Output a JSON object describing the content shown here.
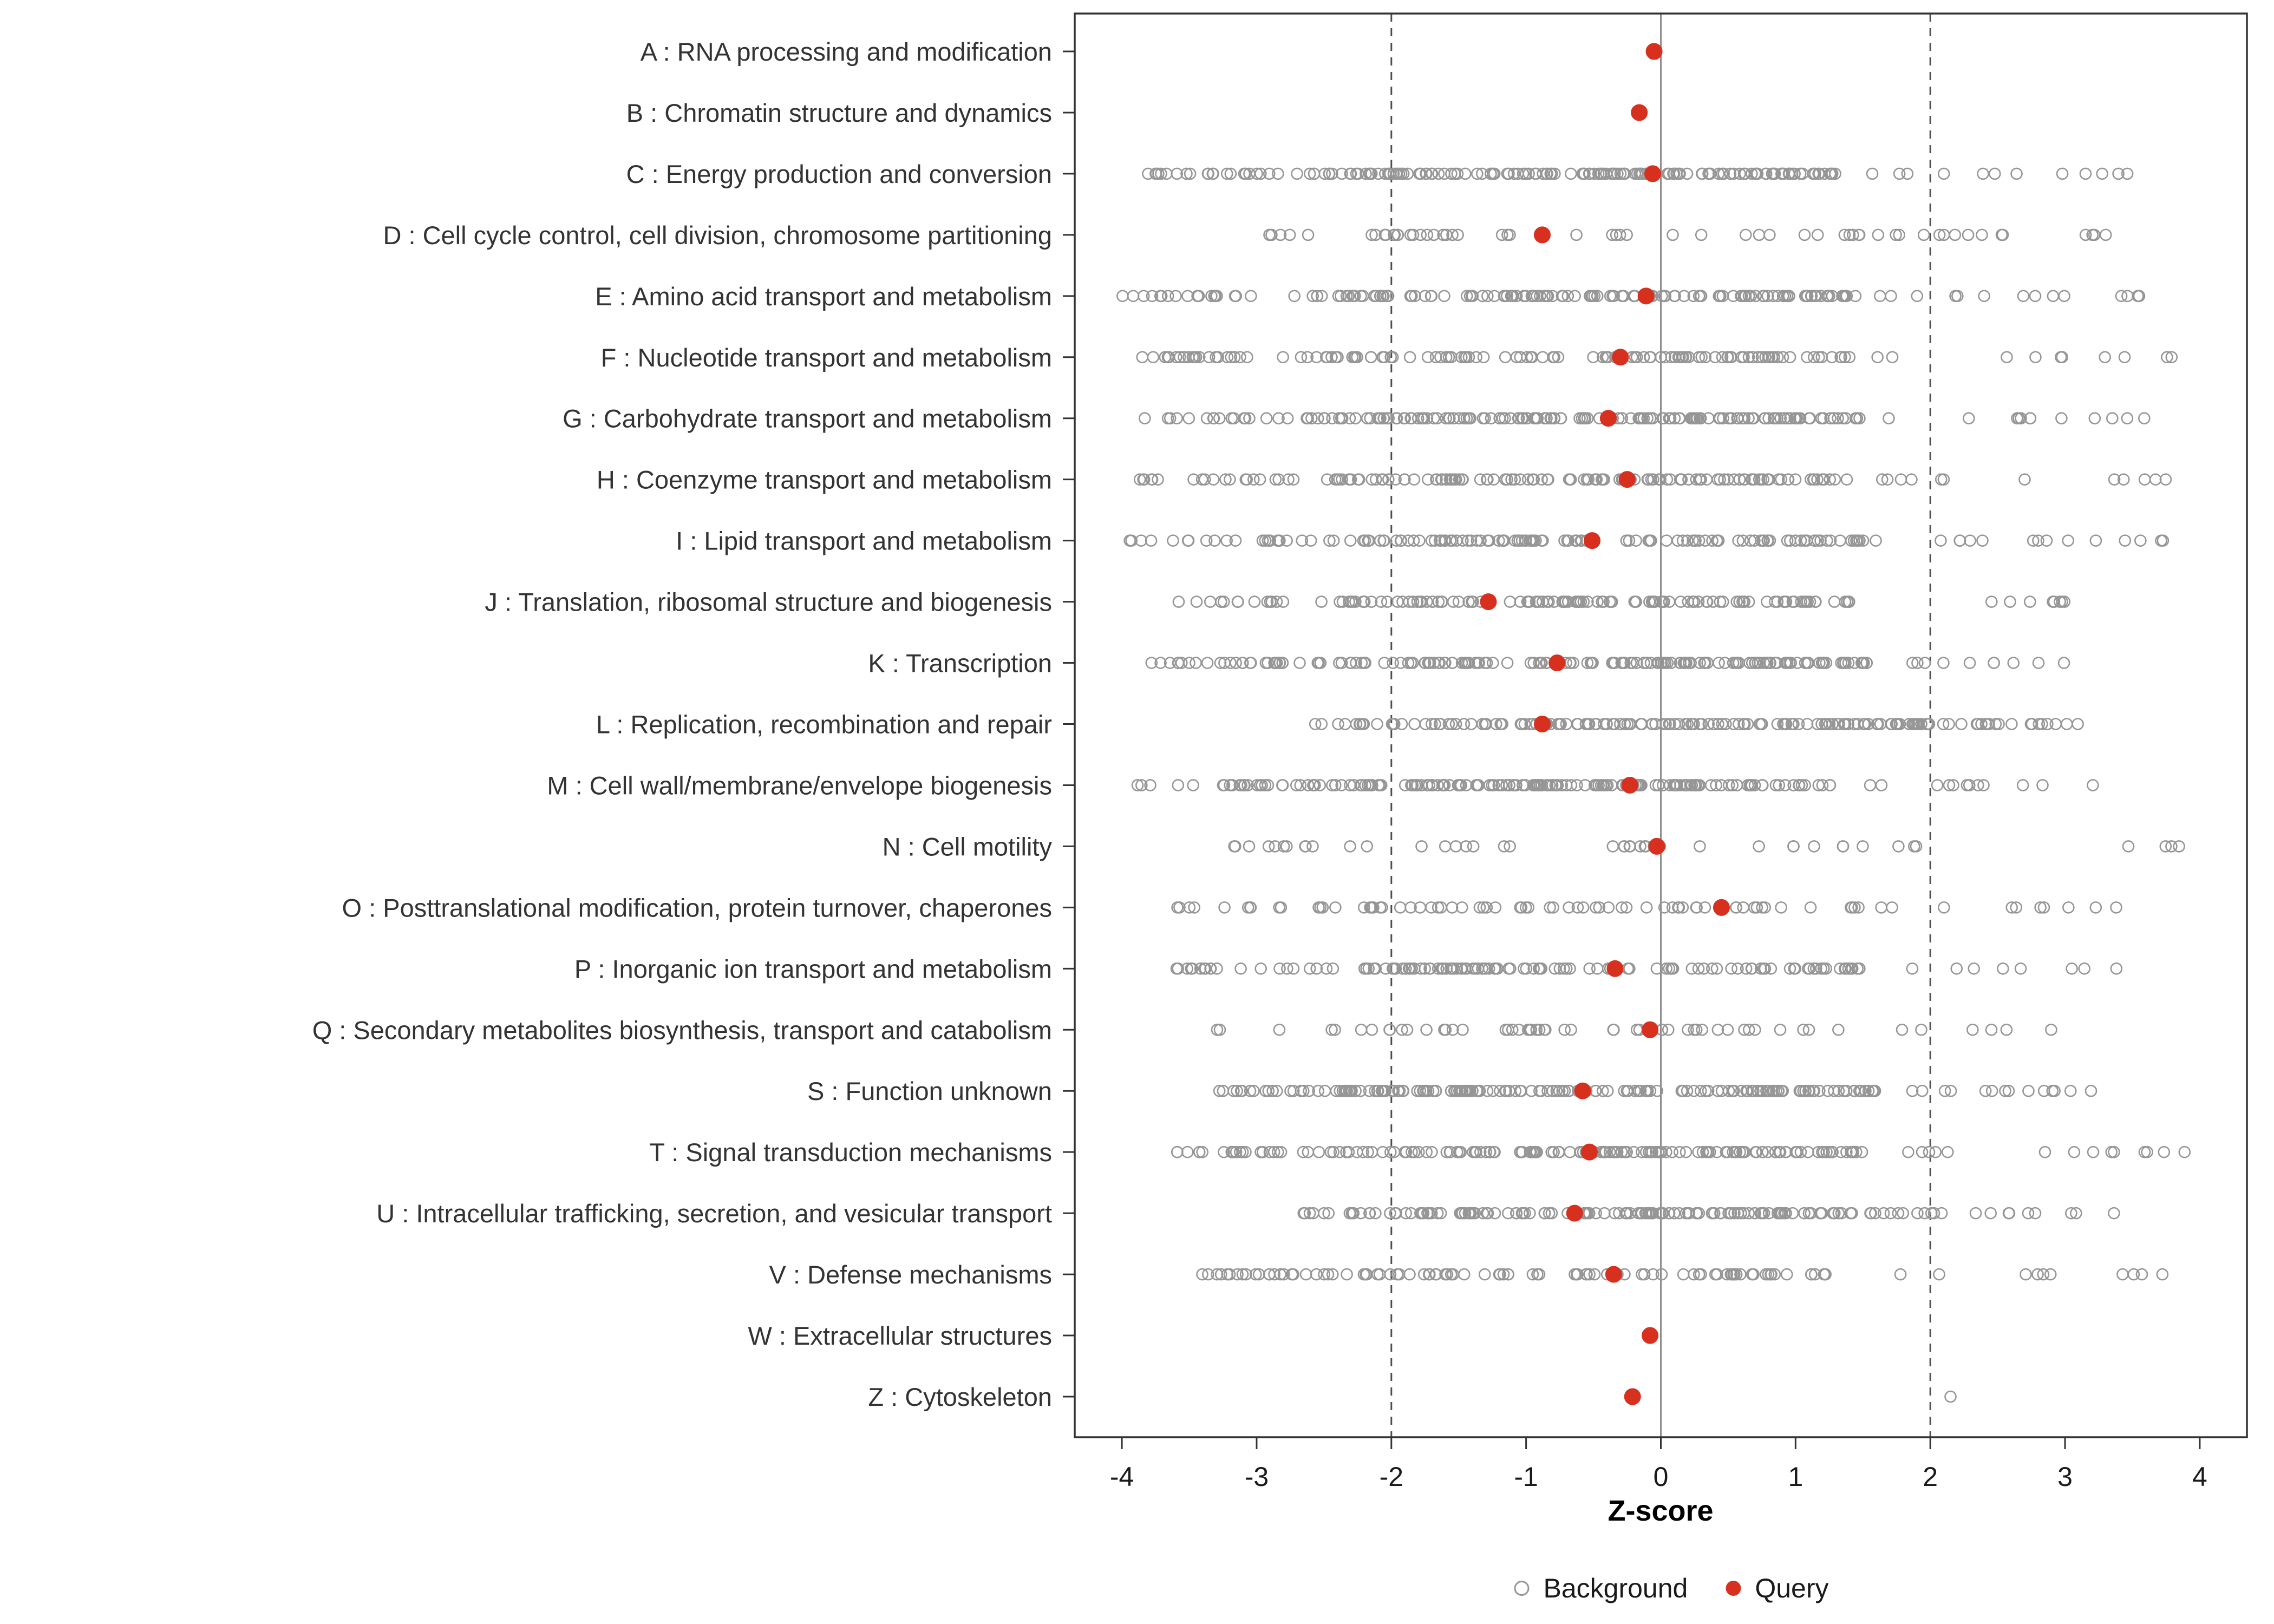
{
  "chart_data": {
    "type": "scatter",
    "title": "",
    "xlabel": "Z-score",
    "xlim": [
      -4.35,
      4.35
    ],
    "x_ticks": [
      -4,
      -3,
      -2,
      -1,
      0,
      1,
      2,
      3,
      4
    ],
    "reference_lines": {
      "solid": [
        0
      ],
      "dashed": [
        -2,
        2
      ]
    },
    "legend": {
      "background": "Background",
      "query": "Query"
    },
    "colors": {
      "query_point": "#D7301F",
      "background_point": "#969696",
      "dashed_line": "#4d4d4d",
      "zero_line": "#8c8c8c",
      "panel_border": "#333333",
      "axis_text": "#1a1a1a",
      "label_text": "#333333"
    },
    "categories": [
      {
        "label": "A : RNA processing and modification",
        "query": -0.05,
        "background_bands": []
      },
      {
        "label": "B : Chromatin structure and dynamics",
        "query": -0.16,
        "background_bands": []
      },
      {
        "label": "C : Energy production and conversion",
        "query": -0.06,
        "background_bands": [
          {
            "n": 30,
            "from": -3.9,
            "to": -2.4
          },
          {
            "n": 140,
            "from": -2.4,
            "to": 1.3
          },
          {
            "n": 12,
            "from": 1.4,
            "to": 3.5
          }
        ]
      },
      {
        "label": "D : Cell cycle control, cell division, chromosome partitioning",
        "query": -0.88,
        "background_bands": [
          {
            "n": 55,
            "from": -3.0,
            "to": 3.0
          },
          {
            "n": 4,
            "from": 3.0,
            "to": 3.5
          }
        ]
      },
      {
        "label": "E : Amino acid transport and metabolism",
        "query": -0.11,
        "background_bands": [
          {
            "n": 25,
            "from": -4.0,
            "to": -2.4
          },
          {
            "n": 130,
            "from": -2.4,
            "to": 1.5
          },
          {
            "n": 14,
            "from": 1.5,
            "to": 3.6
          }
        ]
      },
      {
        "label": "F : Nucleotide transport and metabolism",
        "query": -0.3,
        "background_bands": [
          {
            "n": 30,
            "from": -3.95,
            "to": -2.3
          },
          {
            "n": 90,
            "from": -2.3,
            "to": 1.4
          },
          {
            "n": 10,
            "from": 1.5,
            "to": 3.8
          }
        ]
      },
      {
        "label": "G : Carbohydrate transport and metabolism",
        "query": -0.39,
        "background_bands": [
          {
            "n": 20,
            "from": -3.85,
            "to": -2.6
          },
          {
            "n": 160,
            "from": -2.6,
            "to": 1.5
          },
          {
            "n": 12,
            "from": 1.6,
            "to": 3.7
          }
        ]
      },
      {
        "label": "H : Coenzyme transport and metabolism",
        "query": -0.25,
        "background_bands": [
          {
            "n": 28,
            "from": -3.9,
            "to": -2.3
          },
          {
            "n": 110,
            "from": -2.3,
            "to": 1.4
          },
          {
            "n": 12,
            "from": 1.5,
            "to": 3.9
          }
        ]
      },
      {
        "label": "I : Lipid transport and metabolism",
        "query": -0.51,
        "background_bands": [
          {
            "n": 25,
            "from": -3.95,
            "to": -2.3
          },
          {
            "n": 110,
            "from": -2.3,
            "to": 1.6
          },
          {
            "n": 14,
            "from": 1.6,
            "to": 3.8
          }
        ]
      },
      {
        "label": "J : Translation, ribosomal structure and biogenesis",
        "query": -1.28,
        "background_bands": [
          {
            "n": 15,
            "from": -3.6,
            "to": -2.4
          },
          {
            "n": 110,
            "from": -2.4,
            "to": 1.4
          },
          {
            "n": 8,
            "from": 2.4,
            "to": 3.0
          }
        ]
      },
      {
        "label": "K : Transcription",
        "query": -0.77,
        "background_bands": [
          {
            "n": 30,
            "from": -3.8,
            "to": -2.4
          },
          {
            "n": 140,
            "from": -2.4,
            "to": 1.6
          },
          {
            "n": 10,
            "from": 1.7,
            "to": 3.0
          }
        ]
      },
      {
        "label": "L : Replication, recombination and repair",
        "query": -0.88,
        "background_bands": [
          {
            "n": 10,
            "from": -2.6,
            "to": -2.0
          },
          {
            "n": 150,
            "from": -2.0,
            "to": 2.0
          },
          {
            "n": 20,
            "from": 2.0,
            "to": 3.1
          }
        ]
      },
      {
        "label": "M : Cell wall/membrane/envelope biogenesis",
        "query": -0.23,
        "background_bands": [
          {
            "n": 35,
            "from": -3.95,
            "to": -2.2
          },
          {
            "n": 140,
            "from": -2.2,
            "to": 1.3
          },
          {
            "n": 12,
            "from": 1.4,
            "to": 3.3
          }
        ]
      },
      {
        "label": "N : Cell motility",
        "query": -0.03,
        "background_bands": [
          {
            "n": 40,
            "from": -3.5,
            "to": 1.9
          },
          {
            "n": 4,
            "from": 3.2,
            "to": 3.9
          }
        ]
      },
      {
        "label": "O : Posttranslational modification, protein turnover, chaperones",
        "query": 0.45,
        "background_bands": [
          {
            "n": 70,
            "from": -3.6,
            "to": 1.5
          },
          {
            "n": 10,
            "from": 1.6,
            "to": 3.6
          }
        ]
      },
      {
        "label": "P : Inorganic ion transport and metabolism",
        "query": -0.34,
        "background_bands": [
          {
            "n": 20,
            "from": -3.6,
            "to": -2.3
          },
          {
            "n": 110,
            "from": -2.3,
            "to": 1.5
          },
          {
            "n": 8,
            "from": 1.6,
            "to": 3.4
          }
        ]
      },
      {
        "label": "Q : Secondary metabolites biosynthesis, transport and catabolism",
        "query": -0.08,
        "background_bands": [
          {
            "n": 50,
            "from": -3.3,
            "to": 1.4
          },
          {
            "n": 6,
            "from": 1.5,
            "to": 3.0
          }
        ]
      },
      {
        "label": "S : Function unknown",
        "query": -0.58,
        "background_bands": [
          {
            "n": 20,
            "from": -3.5,
            "to": -2.4
          },
          {
            "n": 160,
            "from": -2.4,
            "to": 1.6
          },
          {
            "n": 14,
            "from": 1.6,
            "to": 3.3
          }
        ]
      },
      {
        "label": "T : Signal transduction mechanisms",
        "query": -0.53,
        "background_bands": [
          {
            "n": 28,
            "from": -3.8,
            "to": -2.3
          },
          {
            "n": 130,
            "from": -2.3,
            "to": 1.5
          },
          {
            "n": 14,
            "from": 1.6,
            "to": 3.9
          }
        ]
      },
      {
        "label": "U : Intracellular trafficking, secretion, and vesicular transport",
        "query": -0.64,
        "background_bands": [
          {
            "n": 15,
            "from": -2.7,
            "to": -2.0
          },
          {
            "n": 130,
            "from": -2.0,
            "to": 2.0
          },
          {
            "n": 12,
            "from": 2.0,
            "to": 3.6
          }
        ]
      },
      {
        "label": "V : Defense mechanisms",
        "query": -0.35,
        "background_bands": [
          {
            "n": 25,
            "from": -3.5,
            "to": -2.2
          },
          {
            "n": 70,
            "from": -2.2,
            "to": 1.3
          },
          {
            "n": 10,
            "from": 1.4,
            "to": 3.8
          }
        ]
      },
      {
        "label": "W : Extracellular structures",
        "query": -0.08,
        "background_bands": []
      },
      {
        "label": "Z : Cytoskeleton",
        "query": -0.21,
        "background_bands": [
          {
            "n": 1,
            "from": 2.15,
            "to": 2.15
          }
        ]
      }
    ]
  }
}
